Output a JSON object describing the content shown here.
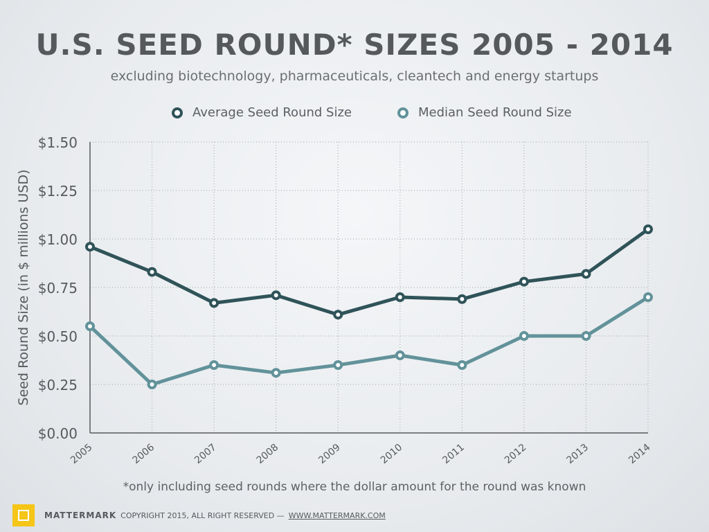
{
  "header": {
    "title": "U.S. SEED ROUND* SIZES 2005 - 2014",
    "subtitle": "excluding biotechnology, pharmaceuticals, cleantech and energy startups"
  },
  "footnote": "*only including seed rounds where the dollar amount for the round was known",
  "footer": {
    "brand": "MATTERMARK",
    "copyright": "COPYRIGHT 2015, ALL RIGHT RESERVED —",
    "url": "WWW.MATTERMARK.COM"
  },
  "chart_data": {
    "type": "line",
    "title": "U.S. SEED ROUND* SIZES 2005 - 2014",
    "ylabel": "Seed Round Size (in $ millions USD)",
    "xlabel": "",
    "x": [
      "2005",
      "2006",
      "2007",
      "2008",
      "2009",
      "2010",
      "2011",
      "2012",
      "2013",
      "2014"
    ],
    "ylim": [
      0,
      1.5
    ],
    "yticks": [
      "$0.00",
      "$0.25",
      "$0.50",
      "$0.75",
      "$1.00",
      "$1.25",
      "$1.50"
    ],
    "grid": true,
    "legend_position": "top",
    "series": [
      {
        "name": "Average Seed Round Size",
        "color": "#2f5358",
        "values": [
          0.96,
          0.83,
          0.67,
          0.71,
          0.61,
          0.7,
          0.69,
          0.78,
          0.82,
          1.05
        ]
      },
      {
        "name": "Median Seed Round Size",
        "color": "#62929a",
        "values": [
          0.55,
          0.25,
          0.35,
          0.31,
          0.35,
          0.4,
          0.35,
          0.5,
          0.5,
          0.7
        ]
      }
    ]
  }
}
